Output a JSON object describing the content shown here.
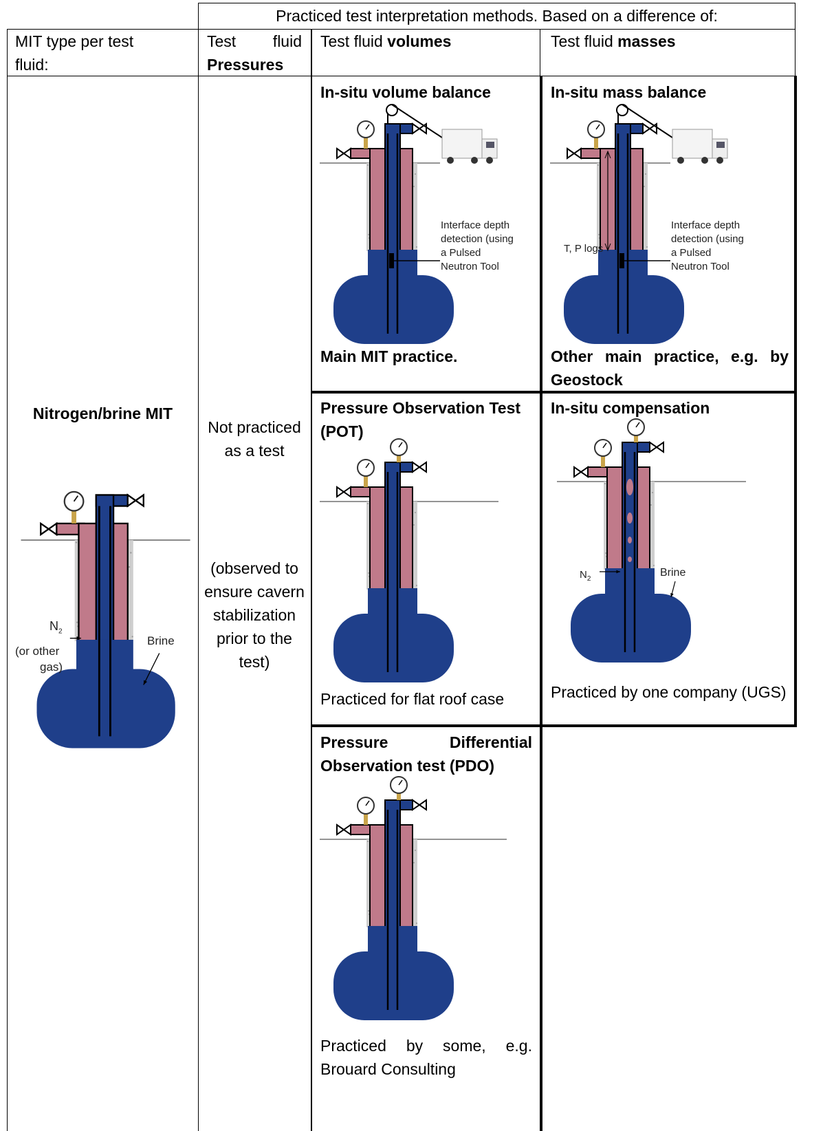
{
  "header": {
    "title": "Practiced test interpretation methods. Based on a difference of:",
    "mit_type": "MIT type per test fluid:",
    "pressures": {
      "plain": "Test fluid",
      "bold": "Pressures"
    },
    "volumes": {
      "plain": "Test fluid",
      "bold": "volumes"
    },
    "masses": {
      "plain": "Test fluid",
      "bold": "masses"
    }
  },
  "nitrogen": {
    "label": "Nitrogen/brine MIT",
    "n2_base": "N",
    "n2_sub": "2",
    "other_gas_1": "(or other",
    "other_gas_2": "gas)",
    "brine": "Brine"
  },
  "pressures_cell": {
    "line1": "Not practiced as a test",
    "line2": "(observed to ensure cavern stabilization prior to the test)"
  },
  "volume_balance": {
    "title": "In-situ volume balance",
    "caption": "Main MIT practice.",
    "interface": [
      "Interface depth",
      "detection (using",
      "a Pulsed",
      "Neutron Tool"
    ]
  },
  "mass_balance": {
    "title": "In-situ mass balance",
    "caption": "Other main practice, e.g. by Geostock",
    "interface": [
      "Interface depth",
      "detection (using",
      "a Pulsed",
      "Neutron Tool"
    ],
    "tp_logs": "T, P logs"
  },
  "pot": {
    "title": "Pressure Observation Test (POT)",
    "caption": "Practiced for flat roof case"
  },
  "compensation": {
    "title": "In-situ compensation",
    "caption": "Practiced by one company (UGS)",
    "n2_base": "N",
    "n2_sub": "2",
    "brine": "Brine"
  },
  "pdo": {
    "title": "Pressure Differential Observation test (PDO)",
    "caption": "Practiced by some, e.g. Brouard Consulting"
  }
}
